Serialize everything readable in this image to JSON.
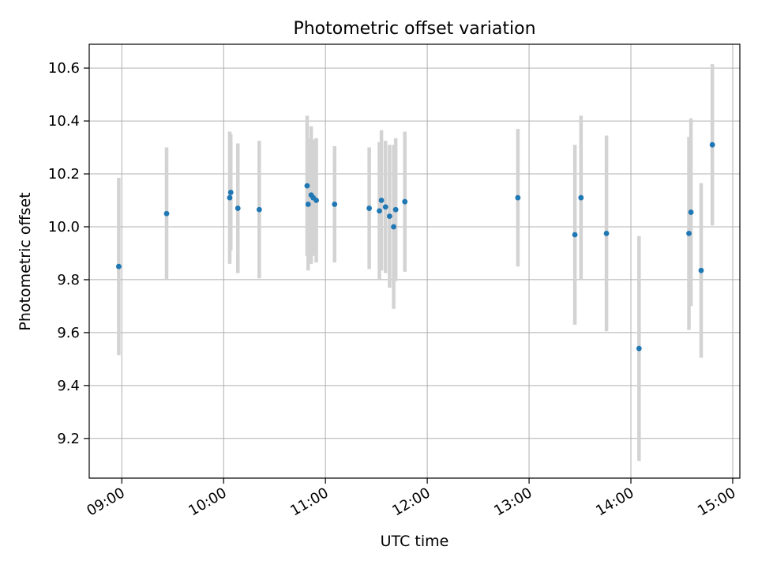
{
  "chart_data": {
    "type": "scatter",
    "title": "Photometric offset variation",
    "xlabel": "UTC time",
    "ylabel": "Photometric offset",
    "x_unit": "hours (UTC)",
    "xlim": [
      8.68,
      15.07
    ],
    "ylim": [
      9.05,
      10.69
    ],
    "grid": true,
    "x_ticks": [
      {
        "value": 9,
        "label": "09:00"
      },
      {
        "value": 10,
        "label": "10:00"
      },
      {
        "value": 11,
        "label": "11:00"
      },
      {
        "value": 12,
        "label": "12:00"
      },
      {
        "value": 13,
        "label": "13:00"
      },
      {
        "value": 14,
        "label": "14:00"
      },
      {
        "value": 15,
        "label": "15:00"
      }
    ],
    "y_ticks": [
      {
        "value": 9.2,
        "label": "9.2"
      },
      {
        "value": 9.4,
        "label": "9.4"
      },
      {
        "value": 9.6,
        "label": "9.6"
      },
      {
        "value": 9.8,
        "label": "9.8"
      },
      {
        "value": 10.0,
        "label": "10.0"
      },
      {
        "value": 10.2,
        "label": "10.2"
      },
      {
        "value": 10.4,
        "label": "10.4"
      },
      {
        "value": 10.6,
        "label": "10.6"
      }
    ],
    "point_color": "#1f77b4",
    "errorbar_color": "#d3d3d3",
    "points": [
      {
        "x": 8.97,
        "y": 9.85,
        "err": 0.335
      },
      {
        "x": 9.44,
        "y": 10.05,
        "err": 0.25
      },
      {
        "x": 10.06,
        "y": 10.11,
        "err": 0.25
      },
      {
        "x": 10.07,
        "y": 10.13,
        "err": 0.22
      },
      {
        "x": 10.14,
        "y": 10.07,
        "err": 0.245
      },
      {
        "x": 10.35,
        "y": 10.065,
        "err": 0.26
      },
      {
        "x": 10.82,
        "y": 10.155,
        "err": 0.265
      },
      {
        "x": 10.83,
        "y": 10.085,
        "err": 0.25
      },
      {
        "x": 10.86,
        "y": 10.12,
        "err": 0.26
      },
      {
        "x": 10.88,
        "y": 10.11,
        "err": 0.22
      },
      {
        "x": 10.91,
        "y": 10.1,
        "err": 0.235
      },
      {
        "x": 11.09,
        "y": 10.085,
        "err": 0.22
      },
      {
        "x": 11.43,
        "y": 10.07,
        "err": 0.23
      },
      {
        "x": 11.53,
        "y": 10.06,
        "err": 0.26
      },
      {
        "x": 11.55,
        "y": 10.1,
        "err": 0.265
      },
      {
        "x": 11.59,
        "y": 10.075,
        "err": 0.25
      },
      {
        "x": 11.63,
        "y": 10.04,
        "err": 0.27
      },
      {
        "x": 11.67,
        "y": 10.0,
        "err": 0.31
      },
      {
        "x": 11.69,
        "y": 10.065,
        "err": 0.27
      },
      {
        "x": 11.78,
        "y": 10.095,
        "err": 0.265
      },
      {
        "x": 12.89,
        "y": 10.11,
        "err": 0.26
      },
      {
        "x": 13.45,
        "y": 9.97,
        "err": 0.34
      },
      {
        "x": 13.51,
        "y": 10.11,
        "err": 0.31
      },
      {
        "x": 13.76,
        "y": 9.975,
        "err": 0.37
      },
      {
        "x": 14.08,
        "y": 9.54,
        "err": 0.425
      },
      {
        "x": 14.57,
        "y": 9.975,
        "err": 0.365
      },
      {
        "x": 14.59,
        "y": 10.055,
        "err": 0.355
      },
      {
        "x": 14.69,
        "y": 9.835,
        "err": 0.33
      },
      {
        "x": 14.8,
        "y": 10.31,
        "err": 0.305
      }
    ]
  }
}
